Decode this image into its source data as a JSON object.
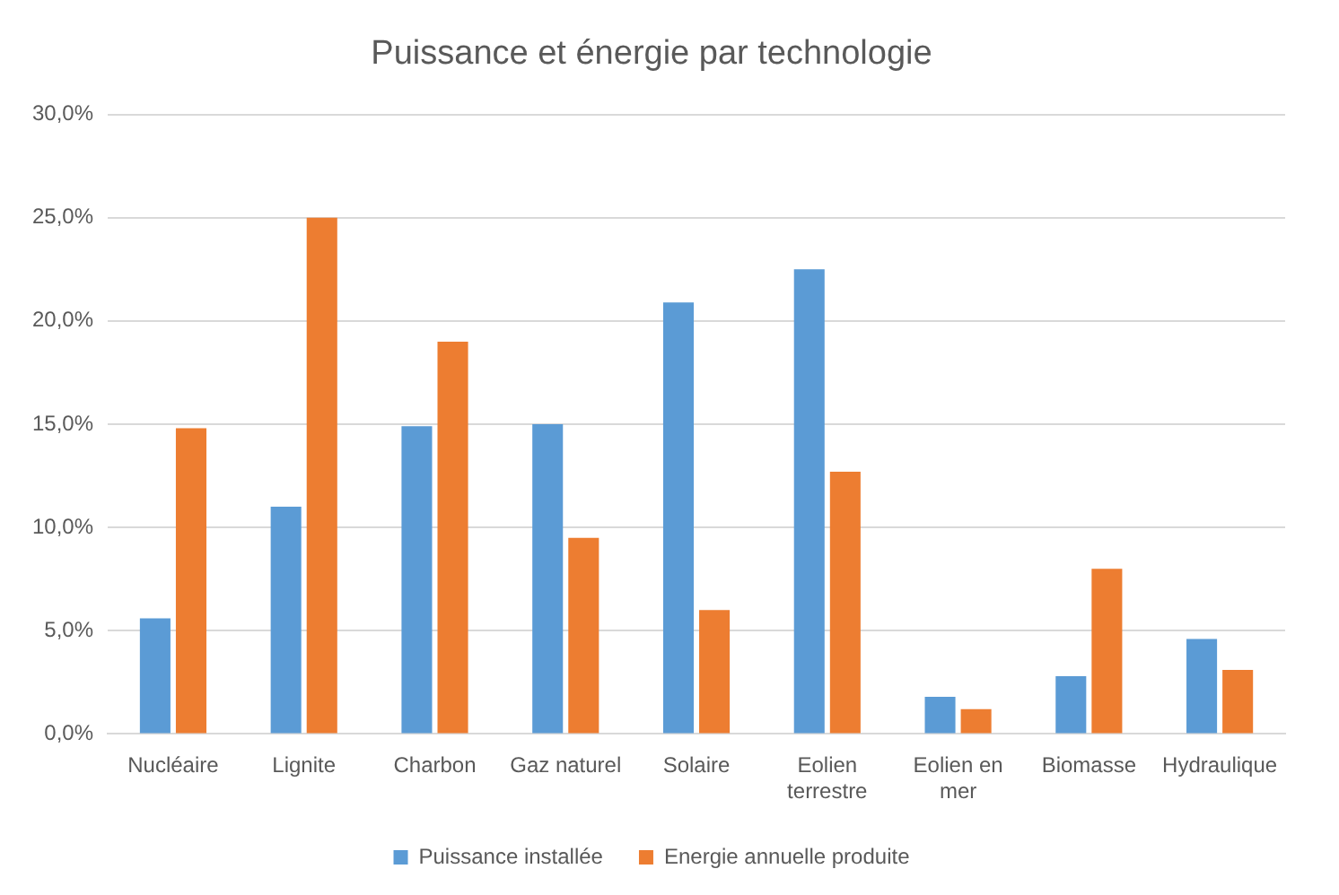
{
  "chart_data": {
    "type": "bar",
    "title": "Puissance et énergie par technologie",
    "categories": [
      "Nucléaire",
      "Lignite",
      "Charbon",
      "Gaz naturel",
      "Solaire",
      "Eolien terrestre",
      "Eolien en mer",
      "Biomasse",
      "Hydraulique"
    ],
    "series": [
      {
        "name": "Puissance installée",
        "color": "#5b9bd5",
        "values": [
          5.6,
          11.0,
          14.9,
          15.0,
          20.9,
          22.5,
          1.8,
          2.8,
          4.6
        ]
      },
      {
        "name": "Energie annuelle produite",
        "color": "#ed7d31",
        "values": [
          14.8,
          25.0,
          19.0,
          9.5,
          6.0,
          12.7,
          1.2,
          8.0,
          3.1
        ]
      }
    ],
    "ylim": [
      0,
      30
    ],
    "yticks": [
      {
        "value": 0,
        "label": "0,0%"
      },
      {
        "value": 5,
        "label": "5,0%"
      },
      {
        "value": 10,
        "label": "10,0%"
      },
      {
        "value": 15,
        "label": "15,0%"
      },
      {
        "value": 20,
        "label": "20,0%"
      },
      {
        "value": 25,
        "label": "25,0%"
      },
      {
        "value": 30,
        "label": "30,0%"
      }
    ],
    "grid": "y",
    "legend": "bottom"
  }
}
